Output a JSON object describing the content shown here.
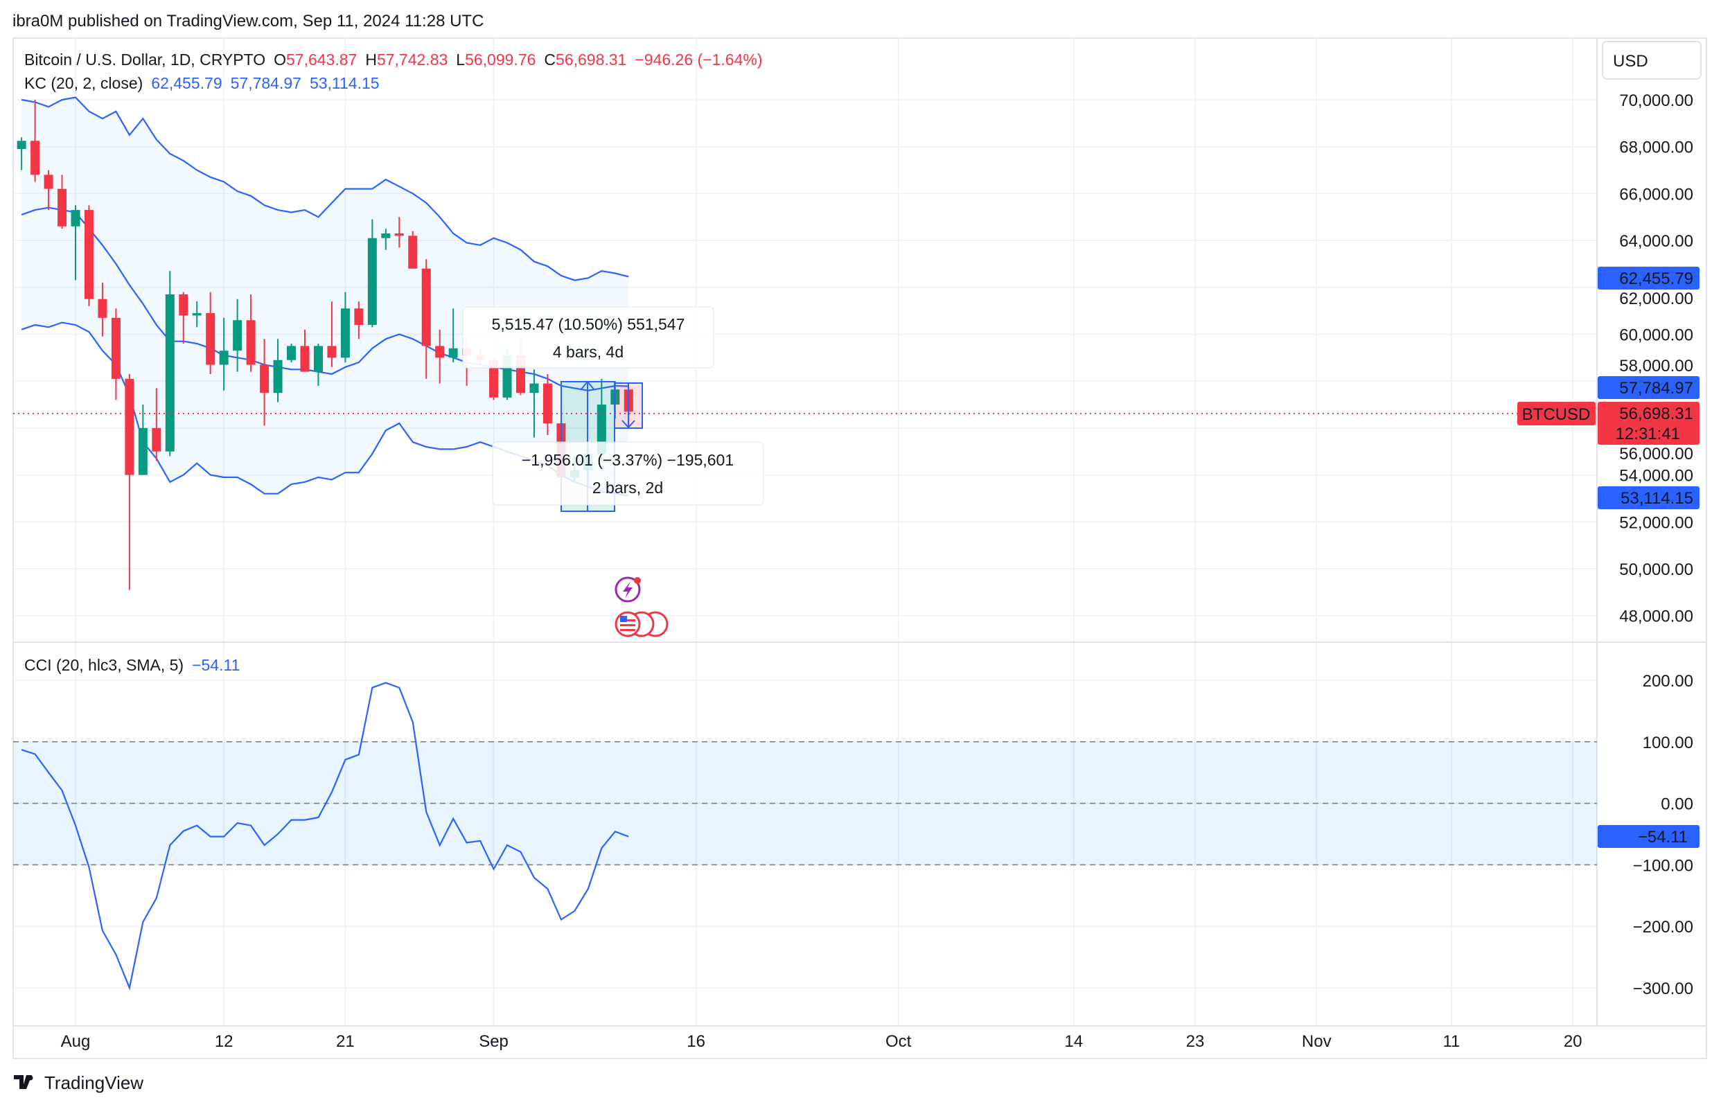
{
  "publish_line": "ibra0M published on TradingView.com, Sep 11, 2024 11:28 UTC",
  "legend": {
    "symbol": "Bitcoin / U.S. Dollar, 1D, CRYPTO",
    "o_label": "O",
    "o": "57,643.87",
    "h_label": "H",
    "h": "57,742.83",
    "l_label": "L",
    "l": "56,099.76",
    "c_label": "C",
    "c": "56,698.31",
    "change": "−946.26 (−1.64%)",
    "kc_label": "KC (20, 2, close)",
    "kc_upper": "62,455.79",
    "kc_mid": "57,784.97",
    "kc_lower": "53,114.15",
    "cci_label": "CCI (20, hlc3, SMA, 5)",
    "cci_value": "−54.11"
  },
  "currency": "USD",
  "price_labels": {
    "kc_upper": "62,455.79",
    "kc_mid": "57,784.97",
    "last": "56,698.31",
    "countdown": "12:31:41",
    "symbol": "BTCUSD",
    "kc_lower": "53,114.15",
    "cci": "−54.11"
  },
  "measure": {
    "up_value": "5,515.47 (10.50%) 551,547",
    "up_bars": "4 bars, 4d",
    "down_value": "−1,956.01 (−3.37%) −195,601",
    "down_bars": "2 bars, 2d"
  },
  "footer_logo": "TradingView",
  "colors": {
    "up": "#089981",
    "down": "#F23645",
    "kc": "#2962FF",
    "cci": "#2962FF",
    "last": "#F23645"
  },
  "icons": [
    "lightning-event-icon",
    "us-flag-event-icon"
  ],
  "chart_data": [
    {
      "type": "candlestick",
      "title": "Bitcoin / U.S. Dollar, 1D, CRYPTO",
      "ylim": [
        47000,
        71200
      ],
      "y_ticks": [
        70000,
        68000,
        66000,
        64000,
        62000,
        60000,
        58000,
        56000,
        54000,
        52000,
        50000,
        48000
      ],
      "y_tick_labels": [
        "70,000.00",
        "68,000.00",
        "66,000.00",
        "64,000.00",
        "62,000.00",
        "60,000.00",
        "58,000.00",
        "56,000.00",
        "54,000.00",
        "52,000.00",
        "50,000.00",
        "48,000.00"
      ],
      "x_ticks": [
        {
          "date": "2024-08-01",
          "label": "Aug"
        },
        {
          "date": "2024-08-12",
          "label": "12"
        },
        {
          "date": "2024-08-21",
          "label": "21"
        },
        {
          "date": "2024-09-01",
          "label": "Sep"
        },
        {
          "date": "2024-09-16",
          "label": "16"
        },
        {
          "date": "2024-10-01",
          "label": "Oct"
        },
        {
          "date": "2024-10-14",
          "label": "14"
        },
        {
          "date": "2024-10-23",
          "label": "23"
        },
        {
          "date": "2024-11-01",
          "label": "Nov"
        },
        {
          "date": "2024-11-11",
          "label": "11"
        },
        {
          "date": "2024-11-20",
          "label": "20"
        }
      ],
      "candles_columns": [
        "date",
        "open",
        "high",
        "low",
        "close"
      ],
      "candles": [
        [
          "2024-07-28",
          67900,
          68400,
          67000,
          68250
        ],
        [
          "2024-07-29",
          68250,
          70000,
          66500,
          66800
        ],
        [
          "2024-07-30",
          66800,
          67000,
          65300,
          66200
        ],
        [
          "2024-07-31",
          66200,
          66800,
          64500,
          64600
        ],
        [
          "2024-08-01",
          64600,
          65500,
          62300,
          65300
        ],
        [
          "2024-08-02",
          65300,
          65500,
          61200,
          61500
        ],
        [
          "2024-08-03",
          61500,
          62200,
          59900,
          60700
        ],
        [
          "2024-08-04",
          60700,
          61100,
          57200,
          58100
        ],
        [
          "2024-08-05",
          58100,
          58300,
          49100,
          54000
        ],
        [
          "2024-08-06",
          54000,
          57000,
          54000,
          56000
        ],
        [
          "2024-08-07",
          56000,
          57700,
          54600,
          55000
        ],
        [
          "2024-08-08",
          55000,
          62700,
          54800,
          61700
        ],
        [
          "2024-08-09",
          61700,
          61800,
          59600,
          60800
        ],
        [
          "2024-08-10",
          60800,
          61400,
          60300,
          60900
        ],
        [
          "2024-08-11",
          60900,
          61800,
          58300,
          58700
        ],
        [
          "2024-08-12",
          58700,
          60700,
          57600,
          59300
        ],
        [
          "2024-08-13",
          59300,
          61500,
          58400,
          60600
        ],
        [
          "2024-08-14",
          60600,
          61700,
          58400,
          58700
        ],
        [
          "2024-08-15",
          58700,
          59800,
          56100,
          57500
        ],
        [
          "2024-08-16",
          57500,
          59800,
          57100,
          58900
        ],
        [
          "2024-08-17",
          58900,
          59600,
          58800,
          59500
        ],
        [
          "2024-08-18",
          59500,
          60200,
          58400,
          58400
        ],
        [
          "2024-08-19",
          58400,
          59600,
          57800,
          59500
        ],
        [
          "2024-08-20",
          59500,
          61400,
          58600,
          59000
        ],
        [
          "2024-08-21",
          59000,
          61800,
          58800,
          61100
        ],
        [
          "2024-08-22",
          61100,
          61400,
          59800,
          60400
        ],
        [
          "2024-08-23",
          60400,
          64900,
          60300,
          64100
        ],
        [
          "2024-08-24",
          64100,
          64500,
          63600,
          64300
        ],
        [
          "2024-08-25",
          64300,
          65000,
          63700,
          64200
        ],
        [
          "2024-08-26",
          64200,
          64400,
          62800,
          62800
        ],
        [
          "2024-08-27",
          62800,
          63200,
          58100,
          59500
        ],
        [
          "2024-08-28",
          59500,
          60200,
          57900,
          59000
        ],
        [
          "2024-08-29",
          59000,
          61100,
          58800,
          59400
        ],
        [
          "2024-08-30",
          59400,
          59800,
          57800,
          59100
        ],
        [
          "2024-08-31",
          59100,
          59400,
          58700,
          58900
        ],
        [
          "2024-09-01",
          58900,
          59000,
          57200,
          57300
        ],
        [
          "2024-09-02",
          57300,
          59400,
          57200,
          59100
        ],
        [
          "2024-09-03",
          59100,
          59800,
          57400,
          57500
        ],
        [
          "2024-09-04",
          57500,
          58500,
          55600,
          57900
        ],
        [
          "2024-09-05",
          57900,
          58300,
          55700,
          56200
        ],
        [
          "2024-09-06",
          56200,
          57000,
          52600,
          53900
        ],
        [
          "2024-09-07",
          53900,
          54800,
          53700,
          54200
        ],
        [
          "2024-09-08",
          54200,
          55300,
          53600,
          54900
        ],
        [
          "2024-09-09",
          54900,
          58100,
          54600,
          57000
        ],
        [
          "2024-09-10",
          57000,
          58000,
          56400,
          57643.87
        ],
        [
          "2024-09-11",
          57643.87,
          57742.83,
          56099.76,
          56698.31
        ]
      ],
      "series": [
        {
          "name": "KC upper",
          "values": [
            70000,
            69900,
            69700,
            70000,
            70100,
            69500,
            69200,
            69500,
            68500,
            69200,
            68300,
            67700,
            67400,
            67000,
            66700,
            66500,
            66100,
            65900,
            65500,
            65300,
            65200,
            65300,
            65000,
            65600,
            66200,
            66200,
            66200,
            66600,
            66300,
            66000,
            65600,
            65000,
            64300,
            63900,
            63800,
            64100,
            63900,
            63600,
            63100,
            62900,
            62500,
            62300,
            62400,
            62700,
            62600,
            62455.79
          ]
        },
        {
          "name": "KC basis",
          "values": [
            65100,
            65300,
            65400,
            65300,
            65200,
            64500,
            63800,
            63000,
            62100,
            61300,
            60400,
            59700,
            59700,
            59600,
            59400,
            59100,
            59000,
            58900,
            58700,
            58600,
            58500,
            58500,
            58400,
            58300,
            58600,
            58800,
            59400,
            59800,
            60000,
            59800,
            59500,
            59200,
            59000,
            58800,
            58700,
            58600,
            58500,
            58400,
            58300,
            58100,
            57800,
            57700,
            57600,
            57700,
            57800,
            57784.97
          ]
        },
        {
          "name": "KC lower",
          "values": [
            60200,
            60400,
            60300,
            60500,
            60400,
            60100,
            59300,
            58700,
            57400,
            55400,
            54700,
            53700,
            54000,
            54500,
            54000,
            53900,
            53900,
            53600,
            53200,
            53200,
            53600,
            53700,
            53900,
            53800,
            54100,
            54100,
            54900,
            55900,
            56200,
            55400,
            55200,
            55100,
            55100,
            55200,
            55400,
            55200,
            55000,
            54800,
            54600,
            54400,
            54000,
            53700,
            53500,
            53300,
            53200,
            53114.15
          ]
        }
      ]
    },
    {
      "type": "line",
      "title": "CCI (20, hlc3, SMA, 5)",
      "ylim": [
        -330,
        250
      ],
      "y_ticks": [
        200,
        100,
        0,
        -100,
        -200,
        -300
      ],
      "y_tick_labels": [
        "200.00",
        "100.00",
        "0.00",
        "−100.00",
        "−200.00",
        "−300.00"
      ],
      "bands": [
        100,
        -100
      ],
      "series": [
        {
          "name": "CCI",
          "values": [
            87,
            80,
            50,
            21,
            -36,
            -104,
            -207,
            -246,
            -300,
            -193,
            -154,
            -68,
            -45,
            -36,
            -54,
            -54,
            -32,
            -36,
            -68,
            -50,
            -27,
            -27,
            -23,
            18,
            71,
            79,
            188,
            196,
            188,
            132,
            -14,
            -68,
            -25,
            -64,
            -61,
            -107,
            -68,
            -79,
            -121,
            -139,
            -189,
            -175,
            -139,
            -73,
            -46,
            -54.11
          ]
        }
      ]
    }
  ]
}
